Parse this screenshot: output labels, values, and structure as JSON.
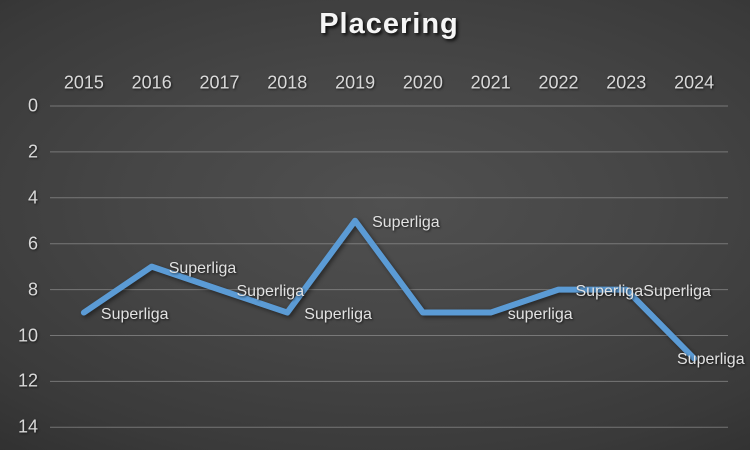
{
  "chart_data": {
    "type": "line",
    "title": "Placering",
    "categories": [
      "2015",
      "2016",
      "2017",
      "2018",
      "2019",
      "2020",
      "2021",
      "2022",
      "2023",
      "2024"
    ],
    "series": [
      {
        "name": "Placering",
        "values": [
          9,
          7,
          8,
          9,
          5,
          9,
          9,
          8,
          8,
          11
        ],
        "labels": [
          "Superliga",
          "Superliga",
          "Superliga",
          "Superliga",
          "Superliga",
          null,
          "superliga",
          "Superliga",
          "Superliga",
          "Superliga"
        ],
        "color": "#5B9BD5"
      }
    ],
    "x_axis": {
      "position": "top"
    },
    "y_axis": {
      "min": 0,
      "max": 14,
      "ticks": [
        0,
        2,
        4,
        6,
        8,
        10,
        12,
        14
      ],
      "reversed": true
    },
    "grid": true,
    "legend": false,
    "colors": {
      "background_center": "#505050",
      "background_edge": "#1d1d1d",
      "gridline": "#8f8f8f",
      "axis_text": "#d9d9d9",
      "label_text": "#e2e2e2",
      "title_text": "#f5f5f5",
      "line": "#5B9BD5"
    }
  }
}
